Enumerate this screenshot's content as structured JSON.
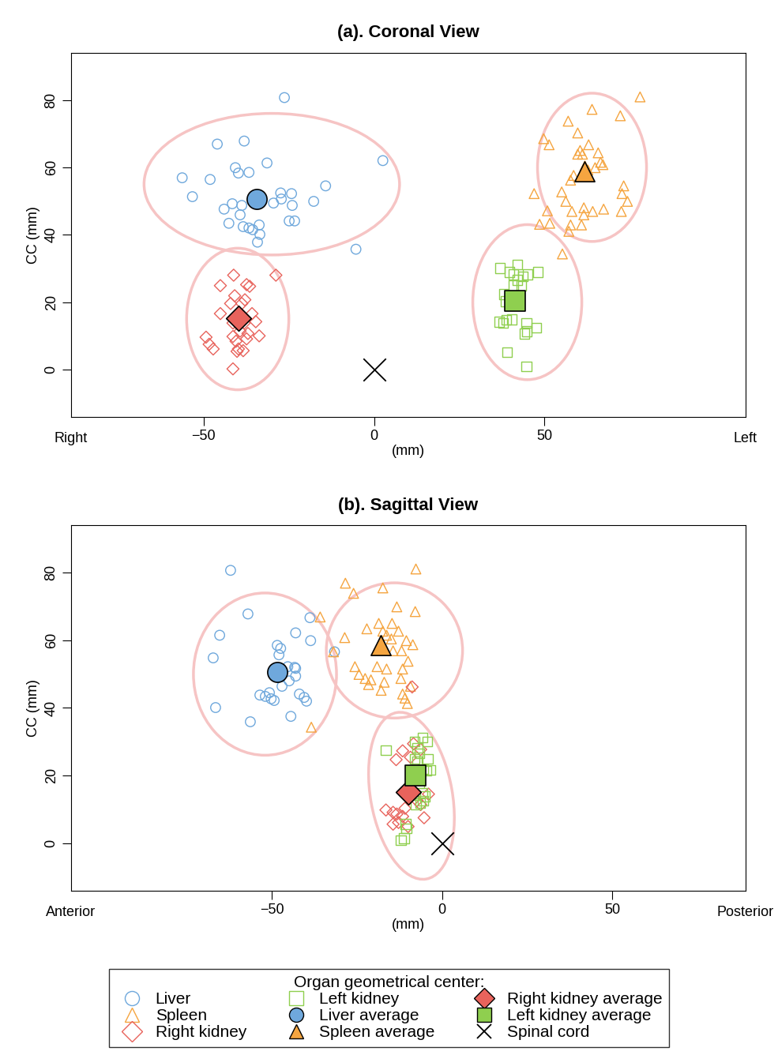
{
  "legend_title": "Organ geometrical center:",
  "legend": "lower center",
  "chart_data": [
    {
      "type": "scatter",
      "title": "(a). Coronal View",
      "x_label": "(mm)",
      "y_label": "CC (mm)",
      "annotations": [
        "Right",
        "Left"
      ],
      "xlim": [
        -89,
        109
      ],
      "xticks": [
        {
          "value": -50,
          "label": "−50"
        },
        0,
        50
      ],
      "ylim": [
        -14,
        94
      ],
      "yticks": [
        0,
        20,
        40,
        60,
        80
      ],
      "series": [
        {
          "name": "Liver",
          "color": "#6fa8dc",
          "marker": "open_circle",
          "x": [
            -26.3,
            -46.0,
            -38.1,
            -31.4,
            -56.3,
            -53.3,
            -48.1,
            -40.7,
            -39.8,
            -36.7,
            -27.4,
            -24.2,
            -27.2,
            -29.5,
            -24.0,
            -14.2,
            -17.7,
            2.6,
            -41.6,
            -44.0,
            -38.8,
            -42.6,
            -38.4,
            -36.7,
            -35.6,
            -33.7,
            -33.5,
            -34.2,
            -39.3,
            -24.9,
            -23.3,
            -5.3
          ],
          "y": [
            80.7,
            66.9,
            67.8,
            61.3,
            56.9,
            51.3,
            56.4,
            59.9,
            58.3,
            58.5,
            52.4,
            52.2,
            50.6,
            49.4,
            48.7,
            54.5,
            49.9,
            62.0,
            49.2,
            47.6,
            48.7,
            43.4,
            42.4,
            42.0,
            41.5,
            42.9,
            40.1,
            37.8,
            45.9,
            44.1,
            44.1,
            35.7
          ]
        },
        {
          "name": "Spleen",
          "color": "#f5a540",
          "marker": "open_triangle",
          "x": [
            78.1,
            64.0,
            72.3,
            57.0,
            59.8,
            49.8,
            51.4,
            63.0,
            60.5,
            59.8,
            61.2,
            65.8,
            66.5,
            67.2,
            61.9,
            64.9,
            58.6,
            57.7,
            47.0,
            55.1,
            73.3,
            72.8,
            56.3,
            74.4,
            50.9,
            58.1,
            61.6,
            67.4,
            72.6,
            61.6,
            64.2,
            51.6,
            57.7,
            60.9,
            57.2,
            48.6,
            55.3,
            62.8
          ],
          "y": [
            80.9,
            77.2,
            75.3,
            73.7,
            70.2,
            68.5,
            66.7,
            66.7,
            65.0,
            63.9,
            63.9,
            64.3,
            61.5,
            60.8,
            60.4,
            59.9,
            57.6,
            56.2,
            52.2,
            52.7,
            54.5,
            52.2,
            49.9,
            49.9,
            47.1,
            46.9,
            48.0,
            47.6,
            46.9,
            45.9,
            46.9,
            43.4,
            42.9,
            42.9,
            41.0,
            43.1,
            34.3,
            59.2
          ]
        },
        {
          "name": "Right kidney",
          "color": "#e8635c",
          "marker": "open_diamond",
          "x": [
            -41.2,
            -28.8,
            -45.1,
            -37.4,
            -36.5,
            -40.9,
            -37.9,
            -42.1,
            -38.8,
            -45.1,
            -35.8,
            -34.7,
            -41.4,
            -38.1,
            -39.3,
            -37.0,
            -41.4,
            -33.7,
            -49.3,
            -40.5,
            -37.4,
            -48.4,
            -47.2,
            -39.8,
            -38.4,
            -40.2,
            -41.4
          ],
          "y": [
            28.0,
            28.0,
            24.9,
            25.2,
            24.7,
            21.9,
            20.7,
            19.6,
            19.6,
            16.6,
            16.6,
            14.2,
            13.8,
            13.8,
            11.4,
            10.7,
            9.8,
            10.0,
            9.6,
            8.4,
            9.1,
            7.5,
            6.1,
            6.1,
            5.6,
            5.4,
            0.2
          ]
        },
        {
          "name": "Left kidney",
          "color": "#8fcf4f",
          "marker": "open_square",
          "x": [
            37.0,
            42.1,
            39.8,
            45.1,
            48.1,
            40.9,
            42.1,
            43.7,
            40.9,
            43.3,
            38.1,
            38.6,
            36.7,
            38.8,
            37.9,
            44.7,
            47.7,
            44.9,
            44.2,
            39.1,
            44.7,
            40.5
          ],
          "y": [
            30.1,
            31.2,
            28.9,
            28.2,
            28.9,
            28.2,
            26.6,
            27.7,
            24.9,
            24.9,
            22.4,
            20.3,
            14.2,
            14.7,
            13.8,
            13.8,
            12.4,
            11.4,
            10.7,
            5.1,
            0.9,
            14.9
          ]
        },
        {
          "name": "Liver average",
          "color": "#6fa8dc",
          "marker": "circle",
          "x": [
            -34.4
          ],
          "y": [
            50.6
          ]
        },
        {
          "name": "Spleen average",
          "color": "#f5a540",
          "marker": "triangle",
          "x": [
            61.9
          ],
          "y": [
            58.7
          ]
        },
        {
          "name": "Right kidney average",
          "color": "#e8635c",
          "marker": "diamond",
          "x": [
            -39.8
          ],
          "y": [
            15.2
          ]
        },
        {
          "name": "Left kidney average",
          "color": "#8fcf4f",
          "marker": "square",
          "x": [
            41.4
          ],
          "y": [
            20.3
          ]
        },
        {
          "name": "Spinal cord",
          "color": "#000000",
          "marker": "x",
          "x": [
            0
          ],
          "y": [
            0
          ]
        }
      ]
    },
    {
      "type": "scatter",
      "title": "(b). Sagittal View",
      "x_label": "(mm)",
      "y_label": "CC (mm)",
      "annotations": [
        "Anterior",
        "Posterior"
      ],
      "xlim": [
        -109,
        89
      ],
      "xticks": [
        {
          "value": -50,
          "label": "−50"
        },
        0,
        50
      ],
      "ylim": [
        -14,
        94
      ],
      "yticks": [
        0,
        20,
        40,
        60,
        80
      ],
      "series": [
        {
          "name": "Liver",
          "color": "#6fa8dc",
          "marker": "open_circle",
          "x": [
            -62.1,
            -57.0,
            -65.3,
            -67.2,
            -66.5,
            -56.3,
            -44.4,
            -43.0,
            -38.8,
            -38.6,
            -31.6,
            -48.4,
            -47.4,
            -47.9,
            -45.3,
            -43.0,
            -43.0,
            -44.9,
            -53.5,
            -51.9,
            -50.7,
            -50.2,
            -49.3,
            -47.0,
            -41.9,
            -40.5,
            -39.8,
            -43.3,
            -48.8
          ],
          "y": [
            80.7,
            67.8,
            61.5,
            54.8,
            40.1,
            35.9,
            37.5,
            62.2,
            66.7,
            59.9,
            56.6,
            58.5,
            57.6,
            55.7,
            52.2,
            51.7,
            49.4,
            48.0,
            43.8,
            43.4,
            44.5,
            42.7,
            42.2,
            46.4,
            44.1,
            43.1,
            42.0,
            52.0,
            51.0
          ]
        },
        {
          "name": "Spleen",
          "color": "#f5a540",
          "marker": "open_triangle",
          "x": [
            -7.7,
            -28.4,
            -26.0,
            -17.4,
            -13.3,
            -7.9,
            -35.8,
            -28.6,
            -18.6,
            -22.1,
            -14.7,
            -17.4,
            -16.3,
            -12.8,
            -10.5,
            -8.6,
            -11.9,
            -14.4,
            -10.0,
            -25.6,
            -24.4,
            -19.1,
            -16.3,
            -11.6,
            -22.6,
            -20.9,
            -17.0,
            -12.1,
            -17.9,
            -21.6,
            -11.6,
            -9.3,
            -10.9,
            -10.2,
            -38.4,
            -31.9,
            -14.9
          ],
          "y": [
            81.1,
            76.9,
            73.9,
            75.5,
            69.9,
            68.5,
            66.9,
            60.8,
            65.0,
            63.4,
            65.0,
            62.7,
            61.5,
            62.7,
            59.9,
            58.7,
            56.9,
            56.9,
            53.8,
            52.2,
            49.9,
            52.2,
            51.5,
            51.5,
            48.7,
            48.3,
            47.6,
            48.7,
            45.2,
            46.9,
            44.1,
            46.4,
            42.9,
            41.3,
            34.3,
            56.6,
            60.4
          ]
        },
        {
          "name": "Right kidney",
          "color": "#e8635c",
          "marker": "open_diamond",
          "x": [
            -8.8,
            -8.4,
            -13.5,
            -6.3,
            -11.6,
            -9.3,
            -16.5,
            -14.4,
            -13.3,
            -4.0,
            -6.3,
            -11.6,
            -5.3,
            -14.4,
            -10.0,
            -12.8,
            -10.9,
            -7.4
          ],
          "y": [
            46.2,
            29.4,
            24.7,
            27.7,
            27.3,
            25.4,
            9.8,
            9.1,
            8.6,
            14.5,
            11.4,
            7.9,
            7.5,
            5.6,
            4.9,
            6.1,
            10.3,
            12.6
          ]
        },
        {
          "name": "Left kidney",
          "color": "#8fcf4f",
          "marker": "open_square",
          "x": [
            -5.8,
            -4.4,
            -8.1,
            -16.5,
            -7.2,
            -6.7,
            -8.1,
            -4.2,
            -7.4,
            -5.6,
            -4.7,
            -3.5,
            -6.7,
            -5.8,
            -5.1,
            -5.6,
            -7.7,
            -6.5,
            -10.7,
            -10.5,
            -12.1,
            -11.2
          ],
          "y": [
            31.2,
            30.1,
            30.1,
            27.5,
            28.2,
            26.6,
            24.9,
            24.9,
            24.2,
            21.9,
            21.4,
            21.7,
            17.7,
            14.9,
            13.8,
            12.6,
            11.4,
            11.9,
            5.6,
            4.4,
            0.9,
            1.4
          ]
        },
        {
          "name": "Liver average",
          "color": "#6fa8dc",
          "marker": "circle",
          "x": [
            -48.4
          ],
          "y": [
            50.6
          ]
        },
        {
          "name": "Spleen average",
          "color": "#f5a540",
          "marker": "triangle",
          "x": [
            -18.1
          ],
          "y": [
            58.5
          ]
        },
        {
          "name": "Right kidney average",
          "color": "#e8635c",
          "marker": "diamond",
          "x": [
            -9.8
          ],
          "y": [
            15.2
          ]
        },
        {
          "name": "Left kidney average",
          "color": "#8fcf4f",
          "marker": "square",
          "x": [
            -7.9
          ],
          "y": [
            20.0
          ]
        },
        {
          "name": "Spinal cord",
          "color": "#000000",
          "marker": "x",
          "x": [
            0
          ],
          "y": [
            0
          ]
        }
      ]
    }
  ]
}
